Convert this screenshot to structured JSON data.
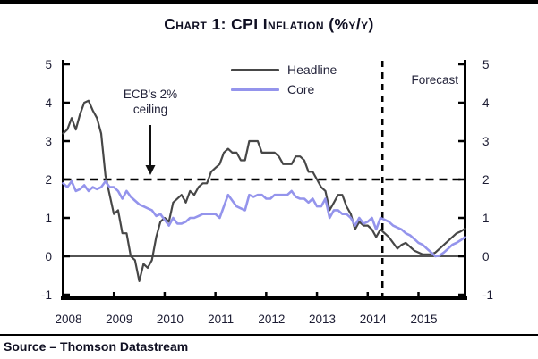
{
  "page": {
    "title": "Chart 1: CPI Inflation (%y/y)",
    "source": "Source – Thomson Datastream"
  },
  "legend": {
    "headline_label": "Headline",
    "core_label": "Core"
  },
  "annotations": {
    "ceiling_line1": "ECB's 2%",
    "ceiling_line2": "ceiling",
    "forecast_label": "Forecast"
  },
  "colors": {
    "headline": "#474747",
    "core": "#9494ec",
    "axis": "#000000",
    "text": "#1c1c33"
  },
  "chart_data": {
    "type": "line",
    "title": "Chart 1: CPI Inflation (%y/y)",
    "xlabel": "",
    "ylabel": "",
    "ylim": [
      -1,
      5
    ],
    "yticks": [
      -1,
      0,
      1,
      2,
      3,
      4,
      5
    ],
    "xlim": [
      2008.0,
      2015.917
    ],
    "xticks": [
      2008,
      2009,
      2010,
      2011,
      2012,
      2013,
      2014,
      2015
    ],
    "xtick_labels": [
      "2008",
      "2009",
      "2010",
      "2011",
      "2012",
      "2013",
      "2014",
      "2015"
    ],
    "x_monthly_start": 2008.0,
    "x_monthly_step": 0.0833333,
    "grid": false,
    "legend_position": "top-center",
    "reference_lines": {
      "ceiling_value": 2,
      "zero_value": 0,
      "forecast_start_x": 2014.29
    },
    "series": [
      {
        "name": "Headline",
        "color": "#474747",
        "values": [
          3.2,
          3.3,
          3.6,
          3.3,
          3.7,
          4.0,
          4.05,
          3.8,
          3.6,
          3.2,
          2.1,
          1.6,
          1.1,
          1.2,
          0.6,
          0.6,
          0.0,
          -0.1,
          -0.65,
          -0.2,
          -0.3,
          -0.1,
          0.5,
          0.9,
          1.0,
          0.9,
          1.4,
          1.5,
          1.6,
          1.4,
          1.7,
          1.6,
          1.8,
          1.9,
          1.9,
          2.2,
          2.3,
          2.4,
          2.7,
          2.8,
          2.7,
          2.7,
          2.5,
          2.5,
          3.0,
          3.0,
          3.0,
          2.7,
          2.7,
          2.7,
          2.7,
          2.6,
          2.4,
          2.4,
          2.4,
          2.6,
          2.6,
          2.5,
          2.2,
          2.2,
          2.0,
          1.8,
          1.7,
          1.2,
          1.4,
          1.6,
          1.6,
          1.3,
          1.1,
          0.7,
          0.9,
          0.8,
          0.8,
          0.7,
          0.5,
          0.7,
          0.6,
          0.5,
          0.35,
          0.2,
          0.3,
          0.35,
          0.25,
          0.15,
          0.1,
          0.05,
          0.05,
          0.05,
          0.1,
          0.2,
          0.3,
          0.4,
          0.5,
          0.6,
          0.65,
          0.72
        ]
      },
      {
        "name": "Core",
        "color": "#9494ec",
        "values": [
          1.9,
          1.8,
          1.95,
          1.7,
          1.75,
          1.85,
          1.7,
          1.8,
          1.75,
          1.8,
          1.95,
          1.8,
          1.8,
          1.7,
          1.5,
          1.7,
          1.55,
          1.45,
          1.35,
          1.3,
          1.25,
          1.2,
          1.05,
          1.1,
          0.95,
          0.8,
          1.0,
          0.85,
          0.85,
          0.9,
          1.0,
          1.0,
          1.05,
          1.1,
          1.1,
          1.1,
          1.1,
          1.0,
          1.3,
          1.6,
          1.45,
          1.3,
          1.25,
          1.2,
          1.6,
          1.55,
          1.6,
          1.6,
          1.5,
          1.5,
          1.6,
          1.6,
          1.6,
          1.6,
          1.7,
          1.55,
          1.5,
          1.5,
          1.4,
          1.5,
          1.3,
          1.3,
          1.5,
          1.0,
          1.2,
          1.2,
          1.1,
          1.1,
          1.0,
          0.8,
          1.0,
          0.85,
          0.9,
          1.0,
          0.7,
          1.0,
          0.95,
          0.9,
          0.8,
          0.75,
          0.7,
          0.6,
          0.55,
          0.45,
          0.35,
          0.3,
          0.2,
          0.1,
          0.0,
          0.02,
          0.1,
          0.2,
          0.3,
          0.35,
          0.42,
          0.5
        ]
      }
    ]
  }
}
